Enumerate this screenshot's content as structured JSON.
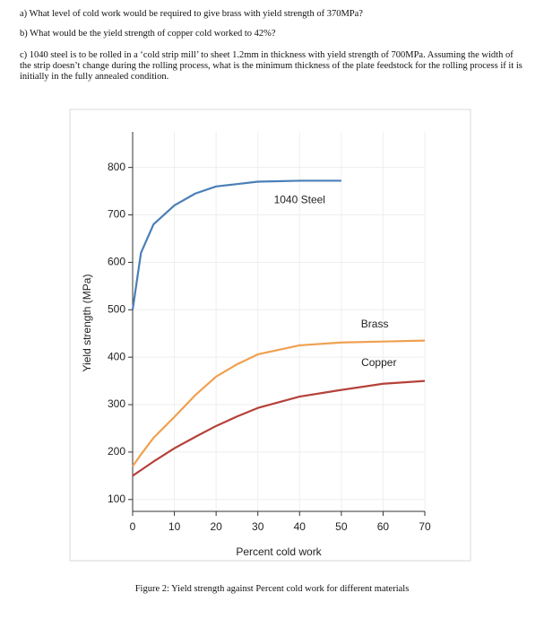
{
  "questions": [
    "a) What level of cold work would be required to give brass with yield strength of 370MPa?",
    "b) What would be the yield strength of copper cold worked to 42%?",
    "c) 1040 steel is to be rolled in a ‘cold strip mill’ to sheet 1.2mm in thickness with yield strength of 700MPa. Assuming the width of the strip doesn’t change during the rolling process, what is the minimum thickness of the plate feedstock for the rolling process if it is initially in the fully annealed condition."
  ],
  "chart_data": {
    "type": "line",
    "x_label": "Percent cold work",
    "y_label": "Yield strength (MPa)",
    "x": [
      0,
      2,
      5,
      10,
      15,
      20,
      25,
      30,
      40,
      50,
      60,
      70
    ],
    "series": [
      {
        "name": "1040 Steel",
        "color": "#4a7fb8",
        "values": [
          500,
          620,
          680,
          720,
          745,
          760,
          765,
          770,
          772,
          772,
          null,
          null
        ]
      },
      {
        "name": "Brass",
        "color": "#f0a050",
        "values": [
          170,
          195,
          230,
          274,
          320,
          359,
          385,
          406,
          425,
          431,
          433,
          435
        ]
      },
      {
        "name": "Copper",
        "color": "#b5413a",
        "values": [
          150,
          162,
          180,
          208,
          232,
          255,
          275,
          293,
          317,
          331,
          344,
          350
        ]
      }
    ],
    "xlim": [
      0,
      70
    ],
    "ylim": [
      75,
      875
    ],
    "xticks": [
      0,
      10,
      20,
      30,
      40,
      50,
      60,
      70
    ],
    "yticks": [
      100,
      200,
      300,
      400,
      500,
      600,
      700,
      800
    ],
    "grid": true
  },
  "caption": "Figure 2: Yield strength against Percent cold work for different materials"
}
